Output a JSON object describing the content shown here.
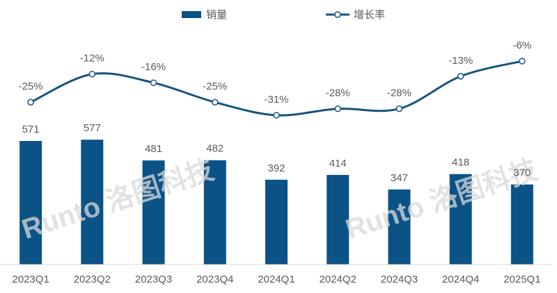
{
  "chart_data": {
    "type": "bar_line",
    "categories": [
      "2023Q1",
      "2023Q2",
      "2023Q3",
      "2023Q4",
      "2024Q1",
      "2024Q2",
      "2024Q3",
      "2024Q4",
      "2025Q1"
    ],
    "series": [
      {
        "name": "销量",
        "color": "#0b5286",
        "values": [
          571,
          577,
          481,
          482,
          392,
          414,
          347,
          418,
          370
        ]
      },
      {
        "name": "增长率",
        "color": "#15537f",
        "axis": "y2",
        "values": [
          -25,
          -12,
          -16,
          -25,
          -31,
          -28,
          -28,
          -13,
          -6
        ],
        "value_labels": [
          "-25%",
          "-12%",
          "-16%",
          "-25%",
          "-31%",
          "-28%",
          "-28%",
          "-13%",
          "-6%"
        ]
      }
    ],
    "ylim": [
      0,
      1200
    ],
    "y2lim": [
      -100,
      20
    ],
    "watermark": "Runto 洛图科技"
  }
}
